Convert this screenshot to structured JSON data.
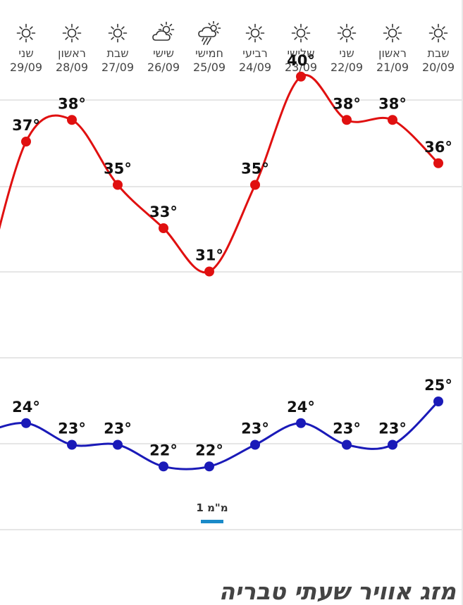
{
  "chart_data": {
    "type": "line",
    "categories": [
      {
        "day": "שני",
        "date": "29/09"
      },
      {
        "day": "ראשון",
        "date": "28/09"
      },
      {
        "day": "שבת",
        "date": "27/09"
      },
      {
        "day": "שישי",
        "date": "26/09"
      },
      {
        "day": "חמישי",
        "date": "25/09"
      },
      {
        "day": "רביעי",
        "date": "24/09"
      },
      {
        "day": "שלישי",
        "date": "23/09"
      },
      {
        "day": "שני",
        "date": "22/09"
      },
      {
        "day": "ראשון",
        "date": "21/09"
      },
      {
        "day": "שבת",
        "date": "20/09"
      }
    ],
    "icons": [
      "sun-icon",
      "sun-icon",
      "sun-icon",
      "partly-cloudy-icon",
      "rain-cloud-icon",
      "sun-icon",
      "sun-icon",
      "sun-icon",
      "sun-icon",
      "sun-icon"
    ],
    "series": [
      {
        "values": [
          37,
          38,
          35,
          33,
          31,
          35,
          40,
          38,
          38,
          36
        ],
        "color": "#e01010"
      },
      {
        "values": [
          24,
          23,
          23,
          22,
          22,
          23,
          24,
          23,
          23,
          25
        ],
        "color": "#1a1ab8"
      }
    ],
    "value_suffix": "°",
    "grid": true
  },
  "tab": {
    "label": "1 מ\"מ"
  },
  "page_title": "מזג אוויר שעתי טבריה"
}
